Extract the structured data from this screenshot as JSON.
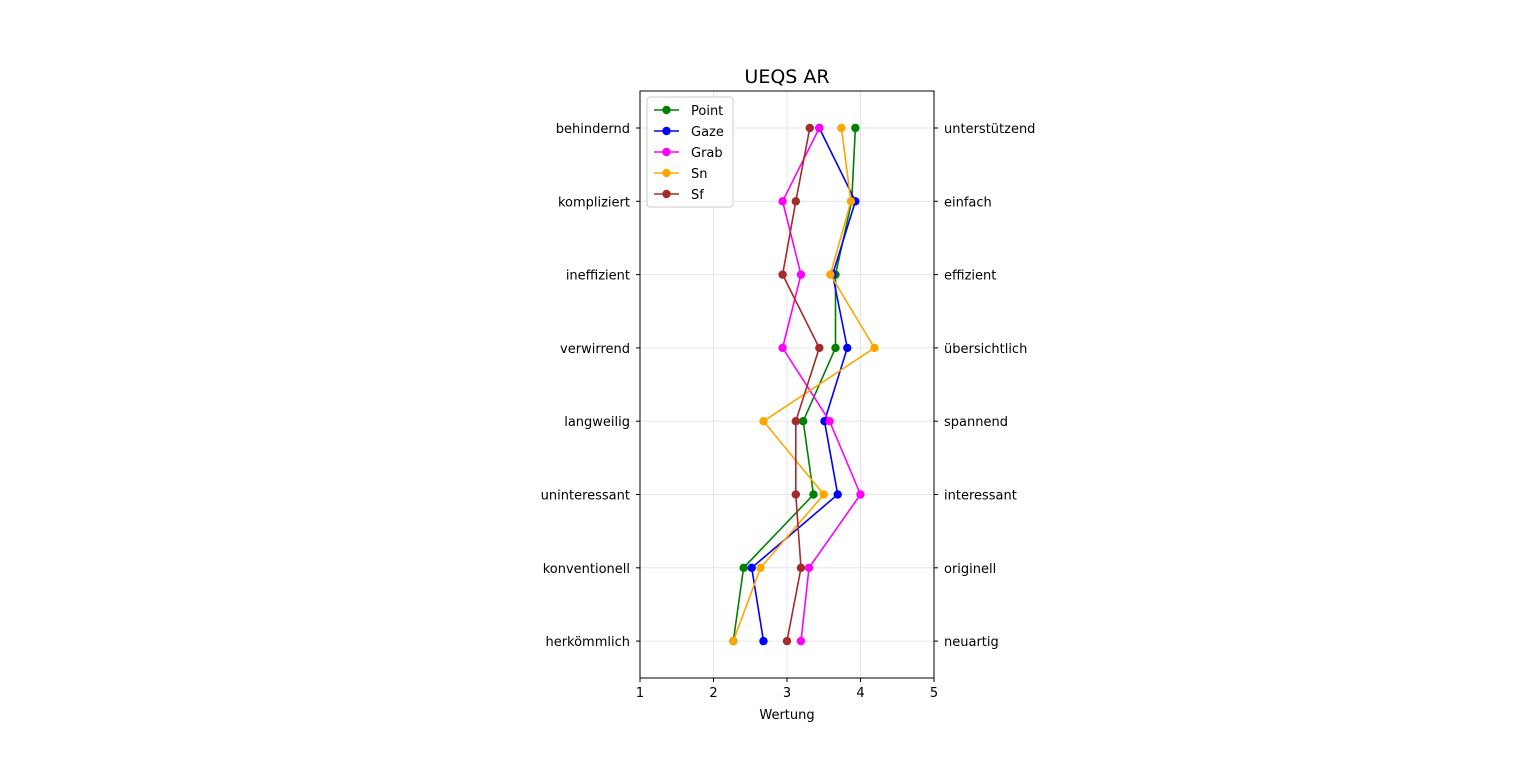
{
  "chart_data": {
    "type": "line",
    "title": "UEQS AR",
    "xlabel": "Wertung",
    "xlim": [
      1,
      5
    ],
    "xticks": [
      1,
      2,
      3,
      4,
      5
    ],
    "grid": true,
    "legend_placement": "top-left",
    "left_labels": [
      "behindernd",
      "kompliziert",
      "ineffizient",
      "verwirrend",
      "langweilig",
      "uninteressant",
      "konventionell",
      "herkömmlich"
    ],
    "right_labels": [
      "unterstützend",
      "einfach",
      "effizient",
      "übersichtlich",
      "spannend",
      "interessant",
      "originell",
      "neuartig"
    ],
    "series": [
      {
        "name": "Point",
        "color": "#008000",
        "values": [
          3.93,
          3.88,
          3.66,
          3.66,
          3.22,
          3.36,
          2.41,
          2.27
        ]
      },
      {
        "name": "Gaze",
        "color": "#0000ff",
        "values": [
          3.44,
          3.93,
          3.62,
          3.82,
          3.51,
          3.69,
          2.52,
          2.68
        ]
      },
      {
        "name": "Grab",
        "color": "#ff00ff",
        "values": [
          3.44,
          2.94,
          3.19,
          2.94,
          3.58,
          4.0,
          3.3,
          3.19
        ]
      },
      {
        "name": "Sn",
        "color": "#ffa500",
        "values": [
          3.74,
          3.87,
          3.59,
          4.19,
          2.68,
          3.5,
          2.64,
          2.27
        ]
      },
      {
        "name": "Sf",
        "color": "#a52a2a",
        "values": [
          3.31,
          3.12,
          2.94,
          3.44,
          3.12,
          3.12,
          3.19,
          3.0
        ]
      }
    ]
  }
}
